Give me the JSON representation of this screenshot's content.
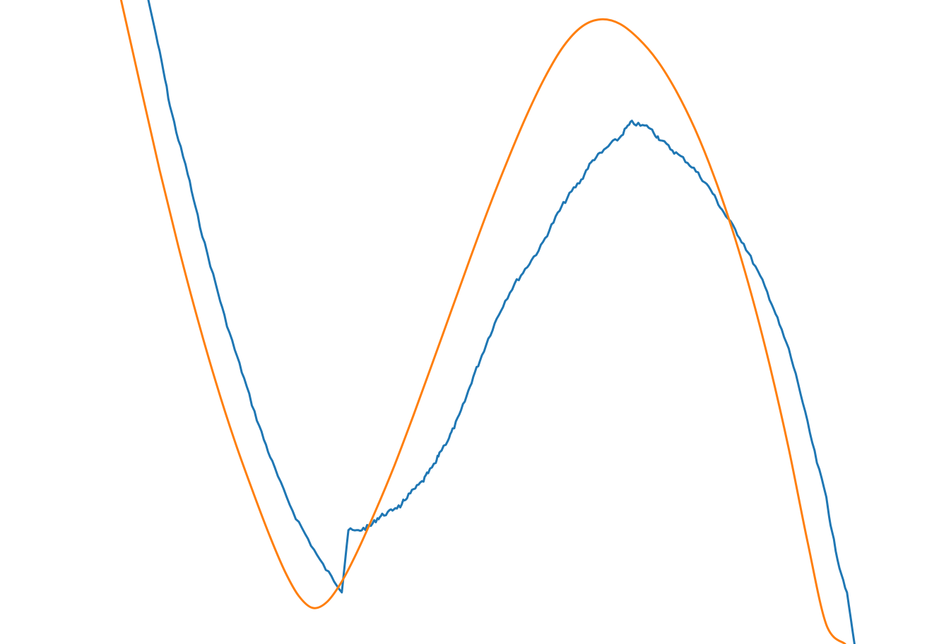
{
  "chart_data": {
    "type": "line",
    "title": "",
    "xlabel": "",
    "ylabel": "",
    "xlim": [
      0,
      100
    ],
    "ylim": [
      0,
      100
    ],
    "grid": false,
    "legend": "none",
    "series": [
      {
        "color": "#1f77b4",
        "points": [
          [
            15.8,
            100.0
          ],
          [
            16.6,
            94.7
          ],
          [
            17.4,
            89.0
          ],
          [
            18.1,
            83.6
          ],
          [
            19.0,
            78.3
          ],
          [
            20.0,
            73.0
          ],
          [
            20.8,
            67.8
          ],
          [
            21.8,
            62.1
          ],
          [
            23.0,
            55.7
          ],
          [
            23.9,
            50.9
          ],
          [
            25.0,
            45.7
          ],
          [
            26.0,
            41.2
          ],
          [
            27.1,
            36.0
          ],
          [
            28.1,
            31.8
          ],
          [
            29.0,
            28.2
          ],
          [
            30.2,
            23.8
          ],
          [
            31.5,
            19.7
          ],
          [
            32.8,
            16.3
          ],
          [
            34.1,
            12.9
          ],
          [
            35.3,
            10.4
          ],
          [
            36.4,
            8.3
          ],
          [
            37.1,
            17.7
          ],
          [
            38.0,
            17.5
          ],
          [
            38.7,
            17.9
          ],
          [
            39.5,
            18.4
          ],
          [
            40.2,
            19.5
          ],
          [
            40.7,
            20.0
          ],
          [
            41.5,
            20.5
          ],
          [
            42.1,
            21.2
          ],
          [
            42.8,
            21.5
          ],
          [
            43.0,
            22.3
          ],
          [
            43.7,
            23.4
          ],
          [
            44.4,
            24.4
          ],
          [
            45.1,
            25.4
          ],
          [
            45.6,
            26.6
          ],
          [
            46.4,
            28.1
          ],
          [
            46.8,
            29.7
          ],
          [
            47.7,
            31.7
          ],
          [
            48.2,
            33.2
          ],
          [
            48.9,
            35.4
          ],
          [
            49.7,
            38.5
          ],
          [
            50.4,
            41.5
          ],
          [
            51.1,
            44.0
          ],
          [
            52.0,
            47.4
          ],
          [
            52.9,
            50.5
          ],
          [
            53.8,
            53.3
          ],
          [
            54.8,
            55.9
          ],
          [
            55.7,
            57.7
          ],
          [
            56.6,
            59.6
          ],
          [
            57.6,
            61.7
          ],
          [
            58.5,
            64.3
          ],
          [
            59.4,
            66.8
          ],
          [
            60.2,
            68.8
          ],
          [
            61.1,
            70.7
          ],
          [
            61.9,
            72.0
          ],
          [
            62.6,
            74.0
          ],
          [
            63.3,
            75.4
          ],
          [
            64.1,
            76.3
          ],
          [
            65.0,
            77.6
          ],
          [
            66.0,
            78.6
          ],
          [
            66.7,
            80.1
          ],
          [
            67.3,
            81.0
          ],
          [
            68.2,
            80.5
          ],
          [
            69.1,
            80.3
          ],
          [
            69.8,
            79.1
          ],
          [
            70.3,
            78.4
          ],
          [
            71.2,
            77.2
          ],
          [
            72.0,
            76.2
          ],
          [
            73.0,
            75.1
          ],
          [
            73.9,
            73.8
          ],
          [
            74.8,
            72.2
          ],
          [
            75.7,
            70.5
          ],
          [
            76.5,
            68.4
          ],
          [
            77.3,
            66.5
          ],
          [
            78.3,
            64.3
          ],
          [
            79.2,
            62.1
          ],
          [
            80.2,
            59.3
          ],
          [
            81.2,
            56.3
          ],
          [
            82.2,
            52.9
          ],
          [
            83.0,
            49.6
          ],
          [
            84.0,
            45.7
          ],
          [
            85.0,
            40.5
          ],
          [
            86.0,
            34.3
          ],
          [
            87.0,
            28.2
          ],
          [
            88.0,
            22.8
          ],
          [
            88.6,
            17.3
          ],
          [
            89.4,
            12.0
          ],
          [
            90.2,
            8.0
          ],
          [
            91.0,
            0.0
          ]
        ]
      },
      {
        "color": "#ff7f0e",
        "points": [
          [
            12.9,
            100.0
          ],
          [
            15.0,
            86.4
          ],
          [
            17.0,
            73.6
          ],
          [
            19.0,
            61.7
          ],
          [
            21.0,
            50.7
          ],
          [
            23.0,
            40.6
          ],
          [
            25.0,
            31.5
          ],
          [
            27.0,
            23.4
          ],
          [
            28.8,
            16.5
          ],
          [
            30.4,
            11.1
          ],
          [
            31.8,
            7.5
          ],
          [
            33.3,
            5.6
          ],
          [
            34.8,
            6.5
          ],
          [
            36.4,
            9.7
          ],
          [
            38.0,
            14.2
          ],
          [
            40.0,
            20.7
          ],
          [
            42.0,
            27.7
          ],
          [
            44.0,
            35.4
          ],
          [
            46.0,
            43.4
          ],
          [
            48.0,
            51.5
          ],
          [
            50.0,
            59.6
          ],
          [
            52.0,
            67.5
          ],
          [
            54.0,
            74.9
          ],
          [
            56.0,
            81.8
          ],
          [
            58.0,
            87.9
          ],
          [
            60.0,
            92.8
          ],
          [
            62.0,
            95.9
          ],
          [
            64.0,
            97.0
          ],
          [
            66.0,
            96.3
          ],
          [
            68.0,
            94.0
          ],
          [
            70.0,
            90.6
          ],
          [
            72.0,
            85.9
          ],
          [
            74.0,
            80.0
          ],
          [
            76.0,
            72.8
          ],
          [
            78.0,
            64.3
          ],
          [
            80.0,
            54.4
          ],
          [
            82.0,
            43.1
          ],
          [
            84.0,
            30.3
          ],
          [
            86.0,
            15.9
          ],
          [
            88.0,
            3.0
          ],
          [
            90.0,
            0.0
          ]
        ]
      }
    ]
  }
}
